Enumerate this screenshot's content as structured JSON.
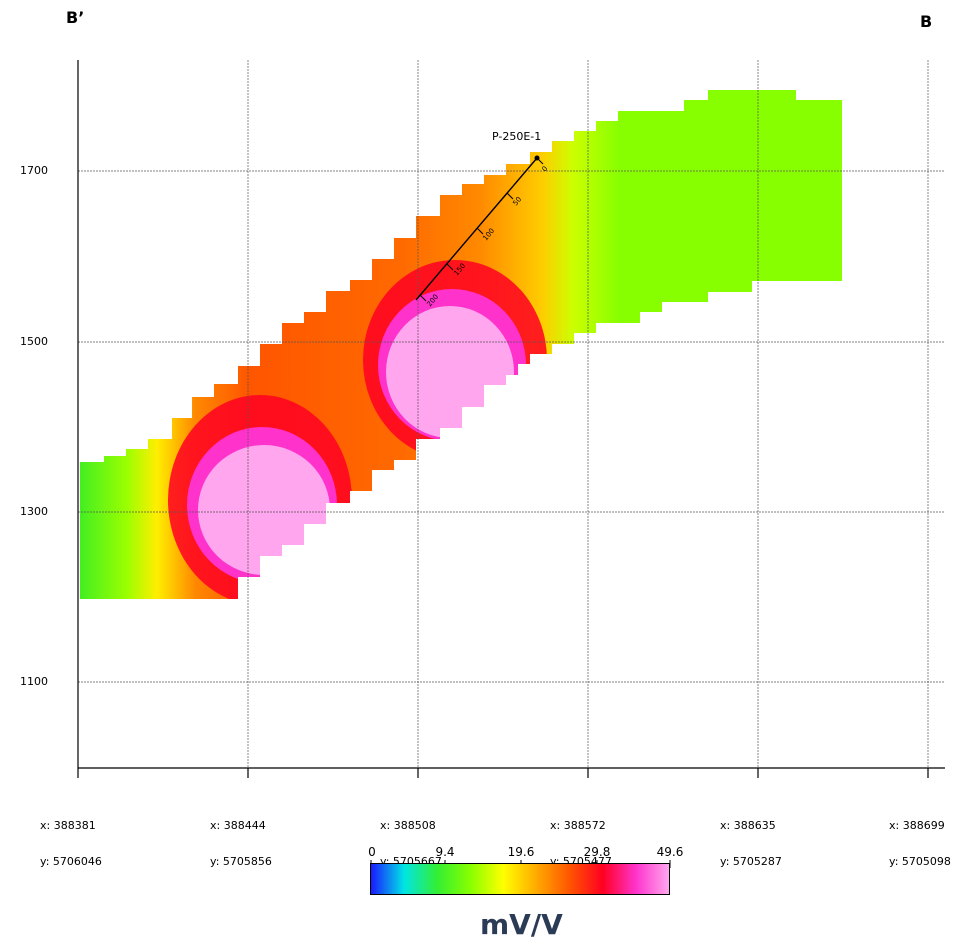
{
  "section": {
    "left_label": "B’",
    "right_label": "B",
    "profile_label": "P-250E-1",
    "profile_ticks": [
      "0",
      "50",
      "100",
      "150",
      "200"
    ]
  },
  "elevation_labels": [
    "1700",
    "1500",
    "1300",
    "1100"
  ],
  "x_labels": [
    {
      "x": "x: 388381",
      "y": "y: 5706046"
    },
    {
      "x": "x: 388444",
      "y": "y: 5705856"
    },
    {
      "x": "x: 388508",
      "y": "y: 5705667"
    },
    {
      "x": "x: 388572",
      "y": "y: 5705477"
    },
    {
      "x": "x: 388635",
      "y": "y: 5705287"
    },
    {
      "x": "x: 388699",
      "y": "y: 5705098"
    }
  ],
  "colorbar": {
    "ticks": [
      "0",
      "9.4",
      "19.6",
      "29.8",
      "49.6"
    ],
    "units": "mV/V",
    "colors": [
      "#1a1aff",
      "#00e5e5",
      "#33ee33",
      "#88ff00",
      "#ffff00",
      "#ffaa00",
      "#ff5500",
      "#ff0022",
      "#ff33cc",
      "#ffa6ee"
    ]
  }
}
